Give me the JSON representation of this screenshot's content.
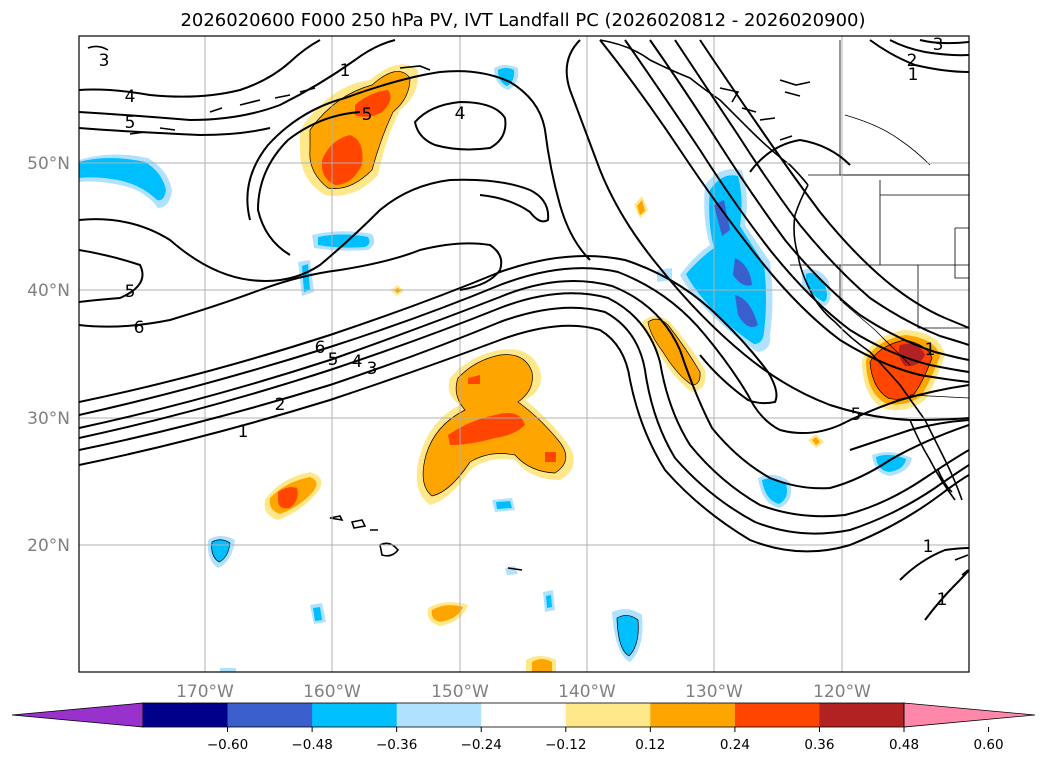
{
  "title": "2026020600 F000 250 hPa PV, IVT Landfall PC (2026020812 - 2026020900)",
  "chart_data": {
    "type": "contour-map",
    "variable_filled": "IVT Landfall PC (shaded)",
    "variable_contour": "250 hPa PV",
    "lon_range": [
      180,
      110
    ],
    "lat_range": [
      10,
      60
    ],
    "lon_ticks": [
      "170°W",
      "160°W",
      "150°W",
      "140°W",
      "130°W",
      "120°W"
    ],
    "lat_ticks": [
      "50°N",
      "40°N",
      "30°N",
      "20°N"
    ],
    "colorbar": {
      "ticks": [
        "−0.60",
        "−0.48",
        "−0.36",
        "−0.24",
        "−0.12",
        "0.12",
        "0.24",
        "0.36",
        "0.48",
        "0.60"
      ],
      "colors": [
        "#9932cc",
        "#00008b",
        "#3a5fcd",
        "#00bfff",
        "#b0e2ff",
        "#ffffff",
        "#ffe88a",
        "#ffa500",
        "#ff4500",
        "#b22222",
        "#ff88aa"
      ]
    },
    "contour_labels": [
      "3",
      "4",
      "5",
      "1",
      "5",
      "4",
      "5",
      "6",
      "6",
      "5",
      "4",
      "3",
      "2",
      "1",
      "2",
      "1",
      "3",
      "5",
      "1",
      "1",
      "1"
    ]
  }
}
